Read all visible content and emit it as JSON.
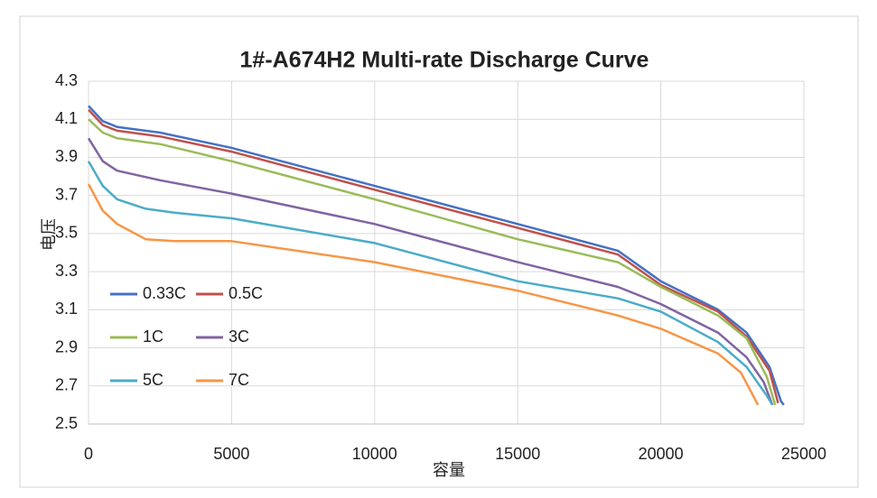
{
  "chart_data": {
    "type": "line",
    "title": "1#-A674H2 Multi-rate Discharge Curve",
    "x_label": "容量",
    "y_label": "电压",
    "xlim": [
      0,
      25000
    ],
    "xticks": [
      0,
      5000,
      10000,
      15000,
      20000,
      25000
    ],
    "ylim": [
      2.5,
      4.3
    ],
    "yticks": [
      2.5,
      2.7,
      2.9,
      3.1,
      3.3,
      3.5,
      3.7,
      3.9,
      4.1,
      4.3
    ],
    "grid": true,
    "legend": "lower-left",
    "series": [
      {
        "name": "0.33C",
        "color": "#4472c4",
        "x": [
          0,
          500,
          1000,
          2500,
          5000,
          10000,
          15000,
          18500,
          20000,
          22000,
          23000,
          23800,
          24200,
          24300
        ],
        "values": [
          4.17,
          4.09,
          4.06,
          4.03,
          3.95,
          3.75,
          3.55,
          3.41,
          3.25,
          3.1,
          2.98,
          2.8,
          2.62,
          2.6
        ]
      },
      {
        "name": "0.5C",
        "color": "#c0504d",
        "x": [
          0,
          500,
          1000,
          2500,
          5000,
          10000,
          15000,
          18500,
          20000,
          22000,
          23000,
          23800,
          24100
        ],
        "values": [
          4.15,
          4.07,
          4.04,
          4.01,
          3.93,
          3.73,
          3.53,
          3.39,
          3.23,
          3.09,
          2.96,
          2.78,
          2.61
        ]
      },
      {
        "name": "1C",
        "color": "#9bbb59",
        "x": [
          0,
          500,
          1000,
          2500,
          5000,
          10000,
          15000,
          18500,
          20000,
          22000,
          23000,
          23700,
          24000
        ],
        "values": [
          4.1,
          4.03,
          4.0,
          3.97,
          3.88,
          3.68,
          3.47,
          3.35,
          3.22,
          3.07,
          2.95,
          2.75,
          2.6
        ]
      },
      {
        "name": "3C",
        "color": "#8064a2",
        "x": [
          0,
          500,
          1000,
          2500,
          5000,
          10000,
          15000,
          18500,
          20000,
          22000,
          23000,
          23600,
          23900
        ],
        "values": [
          4.0,
          3.88,
          3.83,
          3.78,
          3.71,
          3.55,
          3.35,
          3.22,
          3.13,
          2.98,
          2.85,
          2.72,
          2.6
        ]
      },
      {
        "name": "5C",
        "color": "#4bacc6",
        "x": [
          0,
          500,
          1000,
          2000,
          3000,
          5000,
          10000,
          15000,
          18500,
          20000,
          22000,
          23000,
          23700,
          23900
        ],
        "values": [
          3.88,
          3.75,
          3.68,
          3.63,
          3.61,
          3.58,
          3.45,
          3.25,
          3.16,
          3.09,
          2.93,
          2.8,
          2.65,
          2.6
        ]
      },
      {
        "name": "7C",
        "color": "#f79646",
        "x": [
          0,
          500,
          1000,
          2000,
          3000,
          5000,
          10000,
          15000,
          18500,
          20000,
          22000,
          22800,
          23400
        ],
        "values": [
          3.76,
          3.62,
          3.55,
          3.47,
          3.46,
          3.46,
          3.35,
          3.2,
          3.07,
          3.0,
          2.87,
          2.77,
          2.6
        ]
      }
    ]
  }
}
